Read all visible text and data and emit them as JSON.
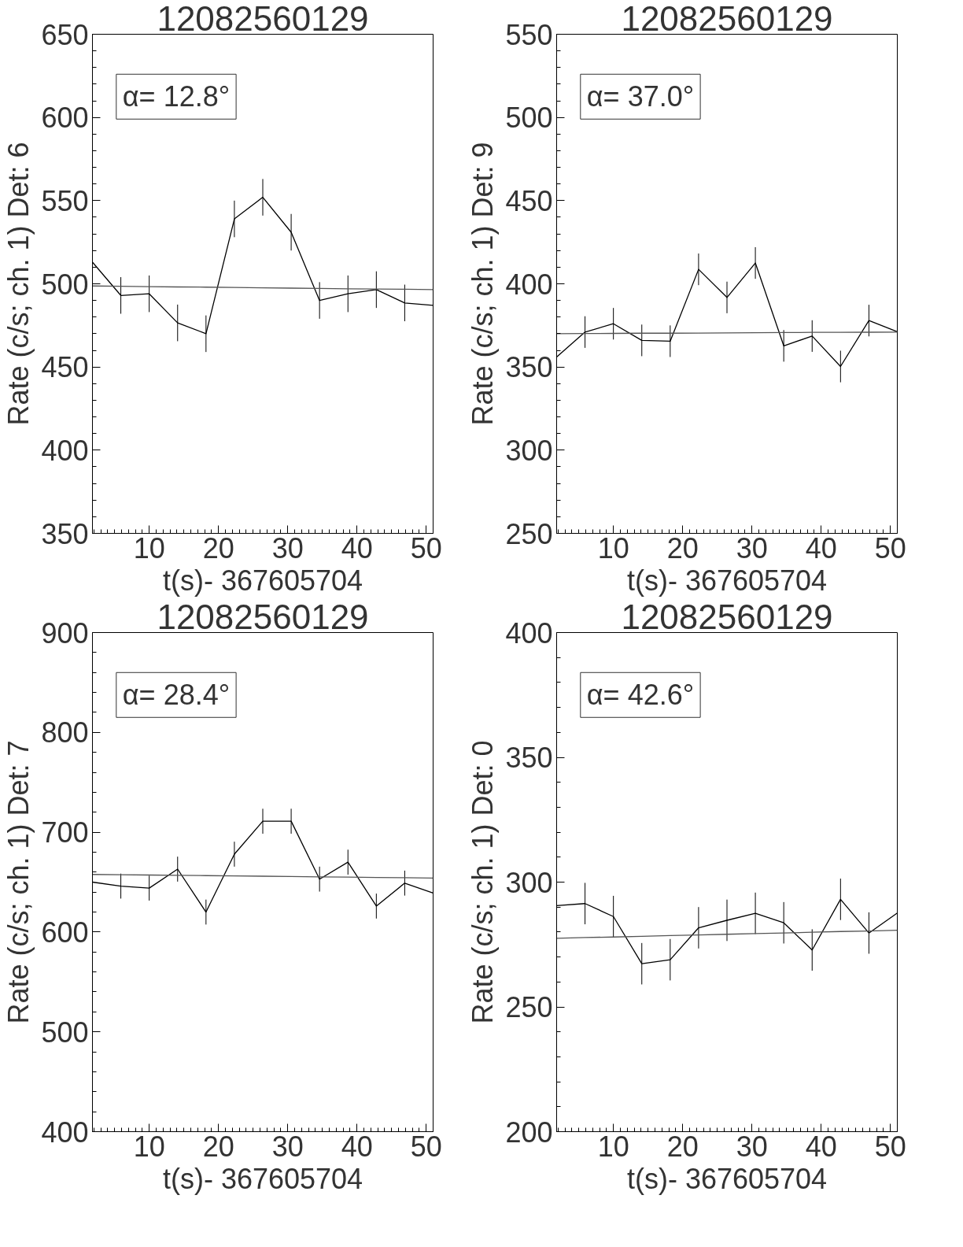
{
  "chart_data": [
    {
      "type": "line",
      "title": "12082560129",
      "xlabel": "t(s)- 367605704",
      "ylabel": "Rate (c/s; ch. 1) Det: 6",
      "annotations": [
        "α= 12.8°"
      ],
      "x": [
        1.8,
        5.9,
        10,
        14.1,
        18.2,
        22.3,
        26.4,
        30.5,
        34.6,
        38.7,
        42.8,
        46.9,
        51.0
      ],
      "xlim": [
        1.8,
        51
      ],
      "ylim": [
        350,
        650
      ],
      "xticks": [
        10,
        20,
        30,
        40,
        50
      ],
      "yticks": [
        350,
        400,
        450,
        500,
        550,
        600,
        650
      ],
      "grid": false,
      "marker": "none",
      "line_style": "solid",
      "series": [
        {
          "color": "#000000",
          "values": [
            513,
            493,
            494,
            476.5,
            470,
            539,
            552,
            531,
            490,
            494,
            496.5,
            488.5,
            487
          ],
          "errors": [
            11,
            11,
            11,
            11,
            11,
            11,
            11,
            11,
            11,
            11,
            11,
            11,
            11
          ]
        },
        {
          "type": "line",
          "color": "#555555",
          "values": [
            498.7,
            498.5,
            498.3,
            498.1,
            498.0,
            497.8,
            497.6,
            497.4,
            497.2,
            497.0,
            496.9,
            496.7,
            496.5
          ]
        }
      ]
    },
    {
      "type": "line",
      "title": "12082560129",
      "xlabel": "t(s)- 367605704",
      "ylabel": "Rate (c/s; ch. 1) Det: 9",
      "annotations": [
        "α= 37.0°"
      ],
      "x": [
        1.8,
        5.9,
        10,
        14.1,
        18.2,
        22.3,
        26.4,
        30.5,
        34.6,
        38.7,
        42.8,
        46.9,
        51.0
      ],
      "xlim": [
        1.8,
        51
      ],
      "ylim": [
        250,
        550
      ],
      "xticks": [
        10,
        20,
        30,
        40,
        50
      ],
      "yticks": [
        250,
        300,
        350,
        400,
        450,
        500,
        550
      ],
      "grid": false,
      "marker": "none",
      "line_style": "solid",
      "series": [
        {
          "color": "#000000",
          "values": [
            356,
            371,
            376,
            366,
            365.5,
            408.7,
            391.8,
            412.5,
            362.7,
            368.6,
            350.3,
            377.9,
            371.2
          ],
          "errors": [
            9.5,
            9.5,
            9.5,
            9.5,
            9.5,
            9.5,
            9.5,
            9.5,
            9.5,
            9.5,
            9.5,
            9.5,
            9.5
          ]
        },
        {
          "type": "line",
          "color": "#555555",
          "values": [
            370,
            370.1,
            370.2,
            370.3,
            370.3,
            370.4,
            370.5,
            370.6,
            370.7,
            370.8,
            370.8,
            370.9,
            371
          ]
        }
      ]
    },
    {
      "type": "line",
      "title": "12082560129",
      "xlabel": "t(s)- 367605704",
      "ylabel": "Rate (c/s; ch. 1) Det: 7",
      "annotations": [
        "α= 28.4°"
      ],
      "x": [
        1.8,
        5.9,
        10,
        14.1,
        18.2,
        22.3,
        26.4,
        30.5,
        34.6,
        38.7,
        42.8,
        46.9,
        51.0
      ],
      "xlim": [
        1.8,
        51
      ],
      "ylim": [
        400,
        900
      ],
      "xticks": [
        10,
        20,
        30,
        40,
        50
      ],
      "yticks": [
        400,
        500,
        600,
        700,
        800,
        900
      ],
      "grid": false,
      "marker": "none",
      "line_style": "solid",
      "series": [
        {
          "color": "#000000",
          "values": [
            650,
            646,
            644,
            663,
            620,
            678,
            711,
            711,
            653,
            670,
            626,
            649,
            639
          ],
          "errors": [
            12.5,
            12.5,
            12.5,
            12.5,
            12.5,
            12.5,
            12.5,
            12.5,
            12.5,
            12.5,
            12.5,
            12.5,
            12.5
          ]
        },
        {
          "type": "line",
          "color": "#555555",
          "values": [
            657.7,
            657.4,
            657.1,
            656.8,
            656.5,
            656.2,
            655.9,
            655.6,
            655.3,
            655.0,
            654.7,
            654.4,
            654.1
          ]
        }
      ]
    },
    {
      "type": "line",
      "title": "12082560129",
      "xlabel": "t(s)- 367605704",
      "ylabel": "Rate (c/s; ch. 1) Det: 0",
      "annotations": [
        "α= 42.6°"
      ],
      "x": [
        1.8,
        5.9,
        10,
        14.1,
        18.2,
        22.3,
        26.4,
        30.5,
        34.6,
        38.7,
        42.8,
        46.9,
        51.0
      ],
      "xlim": [
        1.8,
        51
      ],
      "ylim": [
        200,
        400
      ],
      "xticks": [
        10,
        20,
        30,
        40,
        50
      ],
      "yticks": [
        200,
        250,
        300,
        350,
        400
      ],
      "grid": false,
      "marker": "none",
      "line_style": "solid",
      "series": [
        {
          "color": "#000000",
          "values": [
            290.6,
            291.4,
            286.2,
            267.3,
            268.9,
            281.7,
            284.7,
            287.5,
            283.7,
            272.8,
            293.1,
            279.6,
            287.6
          ],
          "errors": [
            8.3,
            8.3,
            8.3,
            8.3,
            8.3,
            8.3,
            8.3,
            8.3,
            8.3,
            8.3,
            8.3,
            8.3,
            8.3
          ]
        },
        {
          "type": "line",
          "color": "#555555",
          "values": [
            277.5,
            277.8,
            278.0,
            278.3,
            278.6,
            278.8,
            279.1,
            279.4,
            279.6,
            279.9,
            280.2,
            280.4,
            280.7
          ]
        }
      ]
    }
  ]
}
